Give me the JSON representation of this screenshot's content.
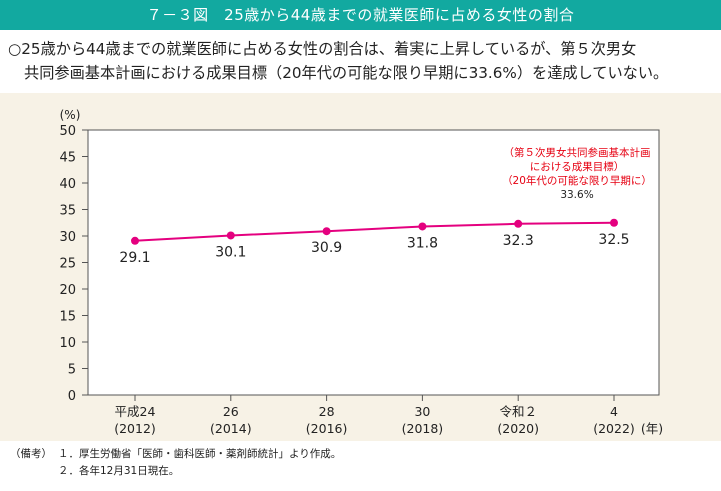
{
  "figure": {
    "title": "７－３図　25歳から44歳までの就業医師に占める女性の割合",
    "summary_line1": "○25歳から44歳までの就業医師に占める女性の割合は、着実に上昇しているが、第５次男女",
    "summary_line2": "共同参画基本計画における成果目標（20年代の可能な限り早期に33.6%）を達成していない。"
  },
  "chart_data": {
    "type": "line",
    "categories": [
      [
        "平成24",
        "(2012)"
      ],
      [
        "26",
        "(2014)"
      ],
      [
        "28",
        "(2016)"
      ],
      [
        "30",
        "(2018)"
      ],
      [
        "令和２",
        "(2020)"
      ],
      [
        "4",
        "(2022)"
      ]
    ],
    "x_unit": "(年)",
    "y_unit": "(%)",
    "ylim": [
      0,
      50
    ],
    "y_ticks": [
      0,
      5,
      10,
      15,
      20,
      25,
      30,
      35,
      40,
      45,
      50
    ],
    "values": [
      29.1,
      30.1,
      30.9,
      31.8,
      32.3,
      32.5
    ],
    "data_labels": [
      "29.1",
      "30.1",
      "30.9",
      "31.8",
      "32.3",
      "32.5"
    ],
    "line_color": "#e4007f",
    "grid": false,
    "target_annotation": {
      "lines": [
        "（第５次男女共同参画基本計画",
        "における成果目標）",
        "（20年代の可能な限り早期に）"
      ],
      "value": "33.6%",
      "color": "#e60012"
    }
  },
  "notes": {
    "label": "（備考）",
    "items": [
      "１．厚生労働省「医師・歯科医師・薬剤師統計」より作成。",
      "２．各年12月31日現在。"
    ]
  }
}
